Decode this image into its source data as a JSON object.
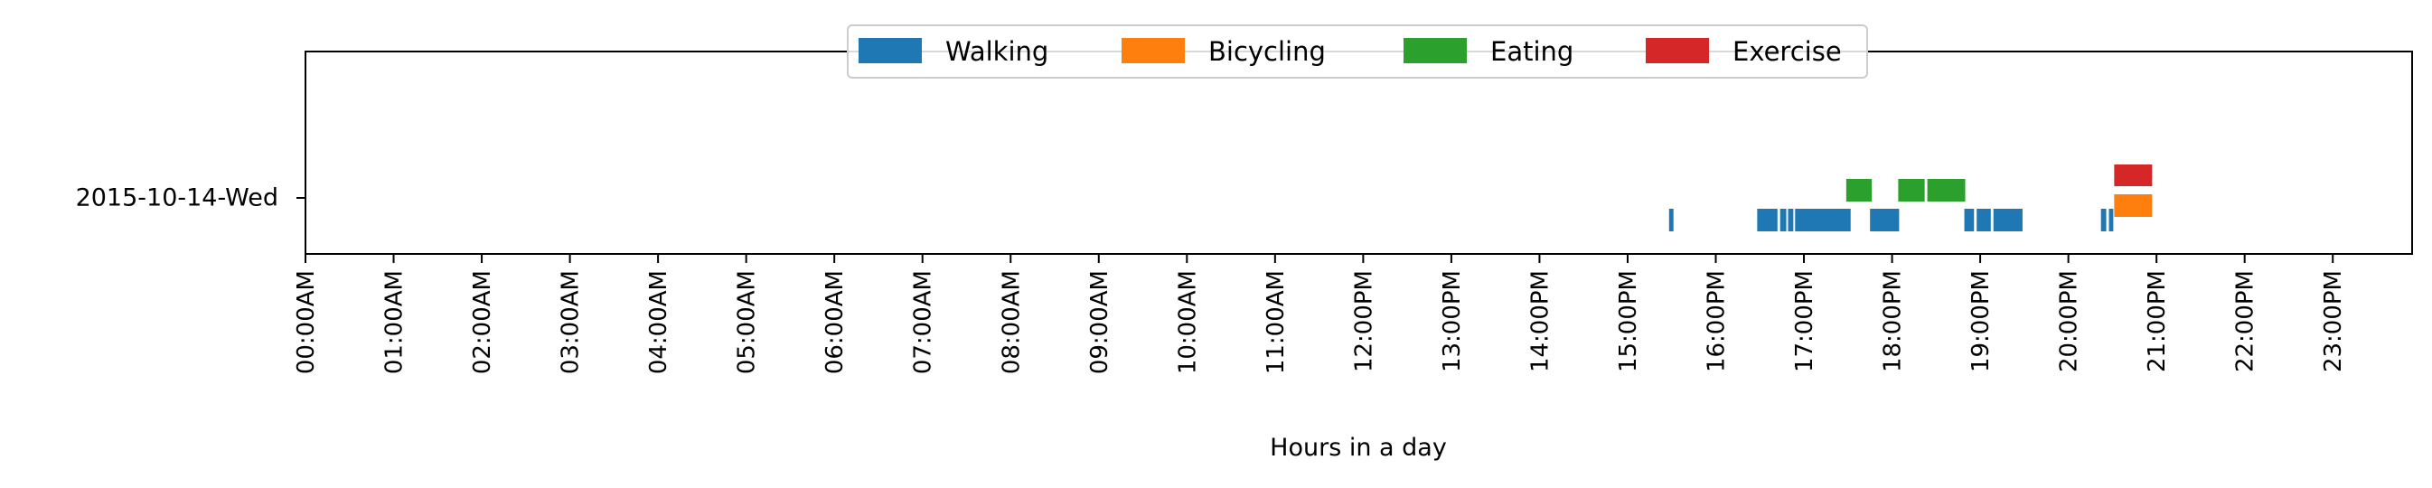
{
  "chart_data": {
    "type": "timeline",
    "title": "",
    "xlabel": "Hours in a day",
    "ylabel": "",
    "xlim": [
      0,
      24
    ],
    "row_label": "2015-10-14-Wed",
    "xtick_labels": [
      "00:00AM",
      "01:00AM",
      "02:00AM",
      "03:00AM",
      "04:00AM",
      "05:00AM",
      "06:00AM",
      "07:00AM",
      "08:00AM",
      "09:00AM",
      "10:00AM",
      "11:00AM",
      "12:00PM",
      "13:00PM",
      "14:00PM",
      "15:00PM",
      "16:00PM",
      "17:00PM",
      "18:00PM",
      "19:00PM",
      "20:00PM",
      "21:00PM",
      "22:00PM",
      "23:00PM"
    ],
    "legend_position": "top-center",
    "series": [
      {
        "name": "Walking",
        "color": "#1f77b4",
        "lane": 0,
        "intervals": [
          [
            15.47,
            15.52
          ],
          [
            16.47,
            16.7
          ],
          [
            16.73,
            16.8
          ],
          [
            16.82,
            16.88
          ],
          [
            16.9,
            17.53
          ],
          [
            17.75,
            18.08
          ],
          [
            18.82,
            18.93
          ],
          [
            18.96,
            19.12
          ],
          [
            19.15,
            19.48
          ],
          [
            20.37,
            20.43
          ],
          [
            20.46,
            20.51
          ]
        ]
      },
      {
        "name": "Bicycling",
        "color": "#ff7f0e",
        "lane": 1,
        "intervals": [
          [
            20.52,
            20.95
          ]
        ]
      },
      {
        "name": "Eating",
        "color": "#2ca02c",
        "lane": 1,
        "intervals": [
          [
            17.48,
            17.77
          ],
          [
            18.07,
            18.37
          ],
          [
            18.4,
            18.83
          ]
        ]
      },
      {
        "name": "Exercise",
        "color": "#d62728",
        "lane": 2,
        "intervals": [
          [
            20.52,
            20.95
          ]
        ]
      }
    ]
  }
}
